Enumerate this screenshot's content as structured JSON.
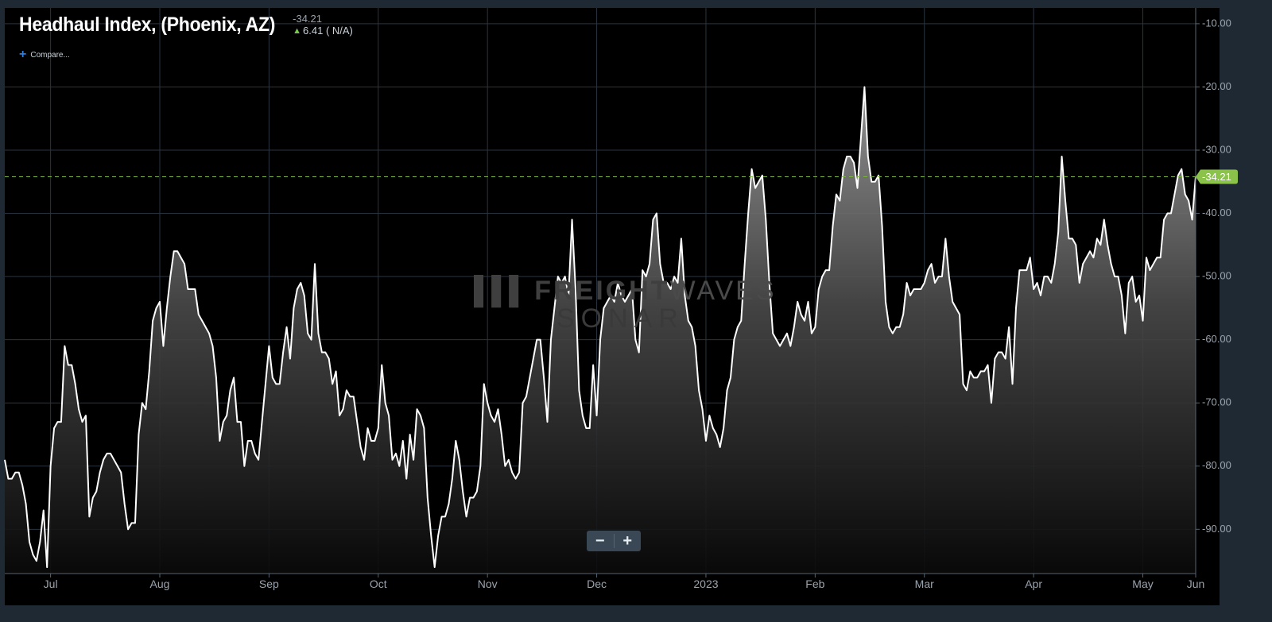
{
  "header": {
    "title": "Headhaul Index, (Phoenix, AZ)",
    "current_value": "-34.21",
    "change_text": "6.41 ( N/A)",
    "change_direction_icon": "arrow-up-icon",
    "compare_label": "Compare..."
  },
  "watermark": {
    "line1_bold": "FREIGHT",
    "line1_light": "WAVES",
    "line2": "SONAR"
  },
  "zoom": {
    "minus_label": "−",
    "plus_label": "+"
  },
  "colors": {
    "background": "#000000",
    "line": "#ffffff",
    "grid": "#2a3440",
    "last_value_badge": "#8bc34a",
    "dashed_line": "#7cb342",
    "axis_text": "#9aa3ad"
  },
  "chart_data": {
    "type": "area",
    "title": "Headhaul Index, (Phoenix, AZ)",
    "xlabel": "",
    "ylabel": "",
    "x_ticks": [
      "Jul",
      "Aug",
      "Sep",
      "Oct",
      "Nov",
      "Dec",
      "2023",
      "Feb",
      "Mar",
      "Apr",
      "May",
      "Jun"
    ],
    "y_ticks": [
      "-10.00",
      "-20.00",
      "-30.00",
      "-40.00",
      "-50.00",
      "-60.00",
      "-70.00",
      "-80.00",
      "-90.00"
    ],
    "ylim": [
      -97,
      -7.5
    ],
    "grid": true,
    "last_value": -34.21,
    "last_value_label": "-34.21",
    "series": [
      {
        "values": [
          -79,
          -82,
          -82,
          -81,
          -81,
          -83,
          -86,
          -92,
          -94,
          -95,
          -92,
          -87,
          -96,
          -80,
          -74,
          -73,
          -73,
          -61,
          -64,
          -64,
          -67,
          -71,
          -73,
          -72,
          -88,
          -85,
          -84,
          -81,
          -79,
          -78,
          -78,
          -79,
          -80,
          -81,
          -86,
          -90,
          -89,
          -89,
          -75,
          -70,
          -71,
          -65,
          -57,
          -55,
          -54,
          -61,
          -55,
          -50,
          -46,
          -46,
          -47,
          -48,
          -52,
          -52,
          -52,
          -56,
          -57,
          -58,
          -59,
          -61,
          -66,
          -76,
          -73,
          -72,
          -68,
          -66,
          -73,
          -73,
          -80,
          -76,
          -76,
          -78,
          -79,
          -73,
          -67,
          -61,
          -66,
          -67,
          -67,
          -62,
          -58,
          -63,
          -55,
          -52,
          -51,
          -53,
          -59,
          -60,
          -48,
          -59,
          -62,
          -62,
          -63,
          -67,
          -65,
          -72,
          -71,
          -68,
          -69,
          -69,
          -73,
          -77,
          -79,
          -74,
          -76,
          -76,
          -74,
          -64,
          -70,
          -72,
          -79,
          -78,
          -80,
          -76,
          -82,
          -75,
          -79,
          -71,
          -72,
          -74,
          -85,
          -91,
          -96,
          -91,
          -88,
          -88,
          -86,
          -82,
          -76,
          -79,
          -84,
          -88,
          -85,
          -85,
          -84,
          -80,
          -67,
          -70,
          -72,
          -73,
          -71,
          -75,
          -80,
          -79,
          -81,
          -82,
          -81,
          -70,
          -69,
          -66,
          -63,
          -60,
          -60,
          -66,
          -73,
          -60,
          -55,
          -50,
          -51,
          -50,
          -53,
          -41,
          -52,
          -68,
          -72,
          -74,
          -74,
          -64,
          -72,
          -60,
          -55,
          -54,
          -53,
          -54,
          -51,
          -53,
          -54,
          -53,
          -52,
          -60,
          -62,
          -49,
          -50,
          -48,
          -41,
          -40,
          -48,
          -51,
          -51,
          -52,
          -50,
          -51,
          -44,
          -53,
          -57,
          -58,
          -61,
          -68,
          -71,
          -76,
          -72,
          -74,
          -75,
          -77,
          -74,
          -68,
          -66,
          -60,
          -58,
          -57,
          -48,
          -40,
          -33,
          -36,
          -35,
          -34,
          -41,
          -51,
          -59,
          -60,
          -61,
          -60,
          -59,
          -61,
          -58,
          -54,
          -56,
          -57,
          -54,
          -59,
          -58,
          -52,
          -50,
          -49,
          -49,
          -42,
          -37,
          -38,
          -33,
          -31,
          -31,
          -32,
          -36,
          -28,
          -20,
          -31,
          -35,
          -35,
          -34,
          -42,
          -54,
          -58,
          -59,
          -58,
          -58,
          -56,
          -51,
          -53,
          -52,
          -52,
          -52,
          -51,
          -49,
          -48,
          -51,
          -50,
          -50,
          -44,
          -50,
          -54,
          -55,
          -56,
          -67,
          -68,
          -65,
          -66,
          -66,
          -65,
          -65,
          -64,
          -70,
          -63,
          -62,
          -62,
          -63,
          -58,
          -67,
          -55,
          -49,
          -49,
          -49,
          -47,
          -52,
          -51,
          -53,
          -50,
          -50,
          -51,
          -48,
          -43,
          -31,
          -38,
          -44,
          -44,
          -45,
          -51,
          -48,
          -47,
          -46,
          -47,
          -44,
          -45,
          -41,
          -45,
          -48,
          -50,
          -50,
          -53,
          -59,
          -51,
          -50,
          -54,
          -53,
          -57,
          -47,
          -49,
          -48,
          -47,
          -47,
          -41,
          -40,
          -40,
          -37,
          -34,
          -33,
          -37,
          -38,
          -41,
          -34.21
        ]
      }
    ]
  }
}
